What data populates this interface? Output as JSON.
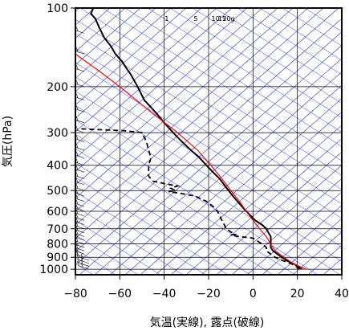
{
  "chart_data": {
    "type": "skew-t",
    "xlabel": "気温(実線), 露点(破線)",
    "ylabel": "気圧(hPa)",
    "xlim": [
      -80,
      40
    ],
    "ylim": [
      1050,
      100
    ],
    "y_scale": "log",
    "x_ticks": [
      -80,
      -60,
      -40,
      -20,
      0,
      20,
      40
    ],
    "x_tick_labels": [
      "−80",
      "−60",
      "−40",
      "−20",
      "0",
      "20",
      "40"
    ],
    "y_ticks": [
      100,
      200,
      300,
      400,
      500,
      600,
      700,
      800,
      900,
      1000
    ],
    "y_tick_labels": [
      "100",
      "200",
      "300",
      "400",
      "500",
      "600",
      "700",
      "800",
      "900",
      "1000"
    ],
    "mixing_ratio_labels": [
      "1",
      "5",
      "10",
      "15",
      "20g"
    ],
    "colors": {
      "isotherm": "#2233dd",
      "temperature": "#000000",
      "dewpoint": "#000000",
      "parcel": "#ff0000",
      "grid": "#000000"
    },
    "series": [
      {
        "style": "solid",
        "points": [
          [
            1000,
            22
          ],
          [
            970,
            20
          ],
          [
            950,
            18
          ],
          [
            925,
            15
          ],
          [
            900,
            13
          ],
          [
            875,
            11
          ],
          [
            850,
            9
          ],
          [
            825,
            8
          ],
          [
            800,
            8
          ],
          [
            775,
            8
          ],
          [
            750,
            8
          ],
          [
            725,
            7
          ],
          [
            700,
            6
          ],
          [
            675,
            4
          ],
          [
            650,
            1
          ],
          [
            625,
            -1
          ],
          [
            600,
            -3
          ],
          [
            575,
            -5
          ],
          [
            550,
            -7
          ],
          [
            525,
            -9
          ],
          [
            500,
            -11
          ],
          [
            475,
            -13
          ],
          [
            450,
            -15
          ],
          [
            425,
            -18
          ],
          [
            400,
            -21
          ],
          [
            375,
            -24
          ],
          [
            350,
            -28
          ],
          [
            325,
            -32
          ],
          [
            300,
            -36
          ],
          [
            275,
            -40
          ],
          [
            250,
            -44
          ],
          [
            225,
            -49
          ],
          [
            200,
            -52
          ],
          [
            180,
            -55
          ],
          [
            170,
            -57
          ],
          [
            160,
            -59
          ],
          [
            150,
            -62
          ],
          [
            140,
            -64
          ],
          [
            130,
            -67
          ],
          [
            120,
            -69
          ],
          [
            110,
            -71
          ],
          [
            105,
            -73
          ],
          [
            100,
            -72
          ]
        ]
      },
      {
        "style": "dashed",
        "points": [
          [
            1000,
            21
          ],
          [
            970,
            19
          ],
          [
            950,
            17
          ],
          [
            925,
            13
          ],
          [
            900,
            10
          ],
          [
            875,
            8
          ],
          [
            850,
            6
          ],
          [
            825,
            6
          ],
          [
            800,
            4
          ],
          [
            780,
            2
          ],
          [
            760,
            0
          ],
          [
            750,
            -6
          ],
          [
            740,
            -10
          ],
          [
            735,
            -8
          ],
          [
            720,
            -10
          ],
          [
            700,
            -12
          ],
          [
            675,
            -13
          ],
          [
            650,
            -14
          ],
          [
            625,
            -15
          ],
          [
            600,
            -16
          ],
          [
            575,
            -18
          ],
          [
            550,
            -21
          ],
          [
            525,
            -26
          ],
          [
            510,
            -34
          ],
          [
            505,
            -38
          ],
          [
            500,
            -35
          ],
          [
            490,
            -37
          ],
          [
            480,
            -34
          ],
          [
            470,
            -40
          ],
          [
            460,
            -45
          ],
          [
            440,
            -47
          ],
          [
            420,
            -47
          ],
          [
            400,
            -47
          ],
          [
            375,
            -46
          ],
          [
            350,
            -47
          ],
          [
            325,
            -48
          ],
          [
            300,
            -50
          ],
          [
            295,
            -58
          ],
          [
            292,
            -70
          ],
          [
            290,
            -78
          ]
        ]
      },
      {
        "style": "parcel",
        "points": [
          [
            1000,
            24
          ],
          [
            950,
            18
          ],
          [
            900,
            14
          ],
          [
            850,
            10
          ],
          [
            800,
            8
          ],
          [
            750,
            6
          ],
          [
            700,
            3
          ],
          [
            650,
            0
          ],
          [
            600,
            -3
          ],
          [
            550,
            -6
          ],
          [
            500,
            -10
          ],
          [
            450,
            -14
          ],
          [
            400,
            -19
          ],
          [
            350,
            -25
          ],
          [
            300,
            -34
          ],
          [
            250,
            -46
          ],
          [
            200,
            -60
          ],
          [
            175,
            -69
          ],
          [
            150,
            -80
          ]
        ]
      }
    ],
    "wind_barbs_present": true,
    "grid": true
  }
}
